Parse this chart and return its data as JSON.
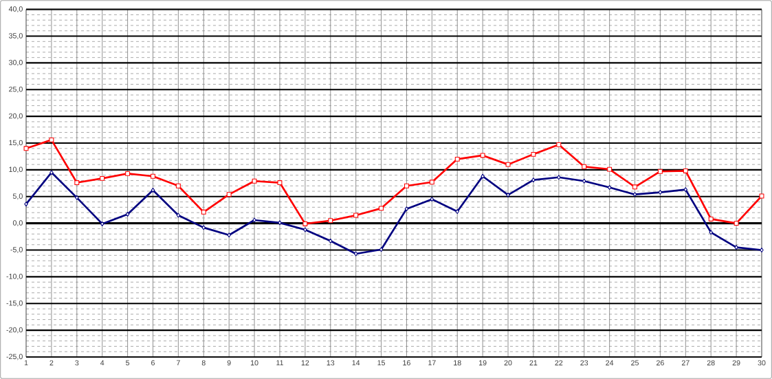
{
  "chart_data": {
    "type": "line",
    "categories": [
      "1",
      "2",
      "3",
      "4",
      "5",
      "6",
      "7",
      "8",
      "9",
      "10",
      "11",
      "12",
      "13",
      "14",
      "15",
      "16",
      "17",
      "18",
      "19",
      "20",
      "21",
      "22",
      "23",
      "24",
      "25",
      "26",
      "27",
      "28",
      "29",
      "30"
    ],
    "ylim": [
      -25,
      40
    ],
    "yticks": [
      {
        "value": -25,
        "label": "-25,0"
      },
      {
        "value": -20,
        "label": "-20,0"
      },
      {
        "value": -15,
        "label": "-15,0"
      },
      {
        "value": -10,
        "label": "-10,0"
      },
      {
        "value": -5,
        "label": "-5,0"
      },
      {
        "value": 0,
        "label": "0,0"
      },
      {
        "value": 5,
        "label": "5,0"
      },
      {
        "value": 10,
        "label": "10,0"
      },
      {
        "value": 15,
        "label": "15,0"
      },
      {
        "value": 20,
        "label": "20,0"
      },
      {
        "value": 25,
        "label": "25,0"
      },
      {
        "value": 30,
        "label": "30,0"
      },
      {
        "value": 35,
        "label": "35,0"
      },
      {
        "value": 40,
        "label": "40,0"
      }
    ],
    "grid": true,
    "line_style": "solid",
    "ref_lines": [
      {
        "axis": "y",
        "value": 0,
        "color": "#000000"
      }
    ],
    "series": [
      {
        "color": "#ff0000",
        "marker": "square",
        "values": [
          14.0,
          15.6,
          7.6,
          8.4,
          9.3,
          8.8,
          7.0,
          2.1,
          5.4,
          7.9,
          7.6,
          -0.1,
          0.5,
          1.5,
          2.8,
          7.0,
          7.7,
          12.0,
          12.7,
          11.0,
          12.9,
          14.7,
          10.6,
          10.1,
          6.8,
          9.7,
          9.8,
          0.8,
          0.0,
          5.1
        ]
      },
      {
        "color": "#000080",
        "marker": "diamond",
        "values": [
          3.6,
          9.5,
          4.8,
          -0.1,
          1.7,
          6.2,
          1.5,
          -0.8,
          -2.2,
          0.6,
          0.1,
          -1.2,
          -3.3,
          -5.7,
          -4.9,
          2.7,
          4.5,
          2.2,
          8.8,
          5.3,
          8.1,
          8.6,
          7.9,
          6.7,
          5.4,
          5.8,
          6.3,
          -1.7,
          -4.5,
          -5.0
        ]
      }
    ]
  }
}
